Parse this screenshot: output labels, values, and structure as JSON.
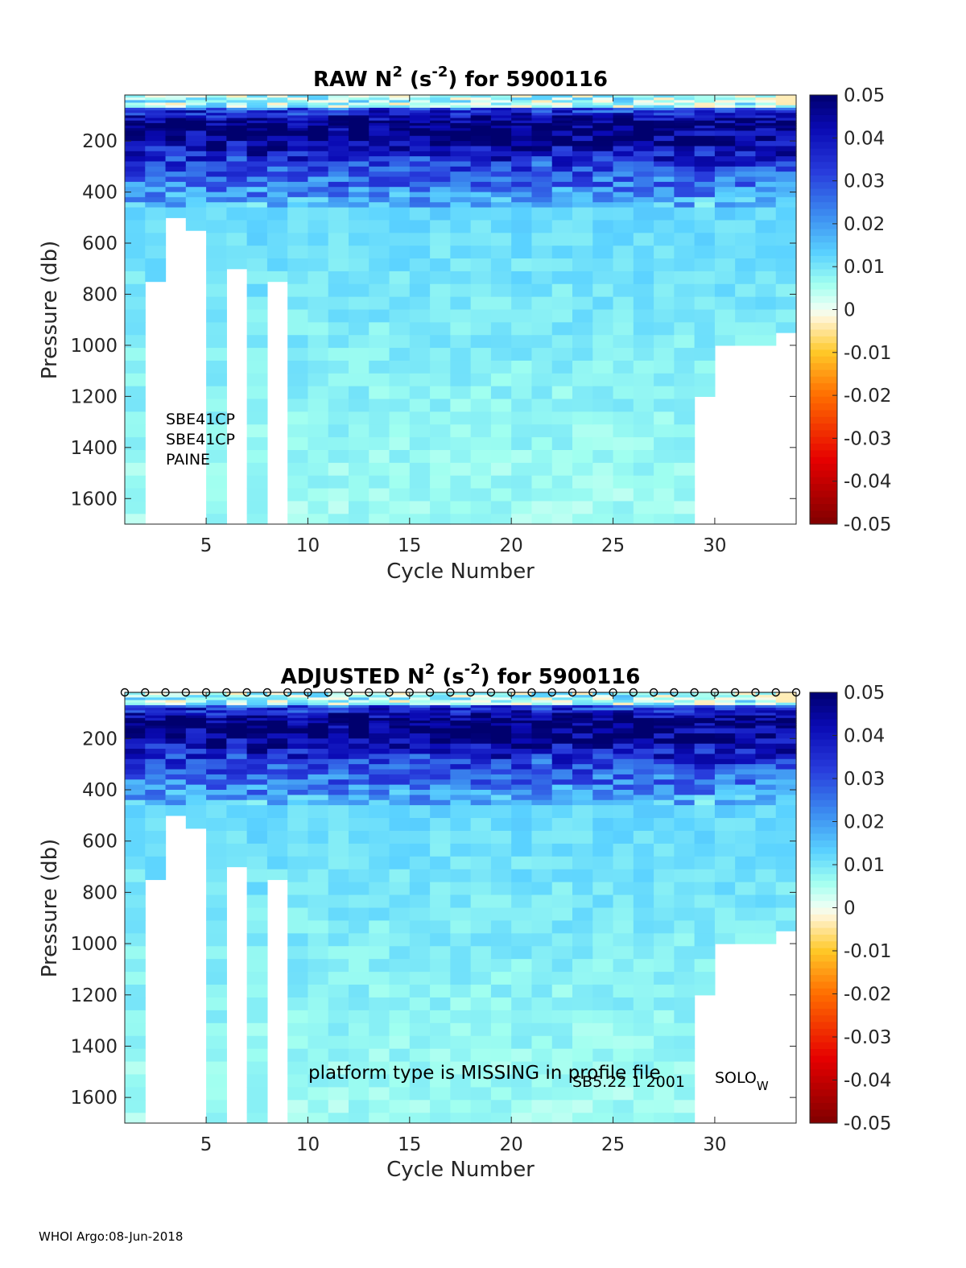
{
  "footer": "WHOI Argo:08-Jun-2018",
  "chart_data": [
    {
      "type": "heatmap",
      "title": "RAW N",
      "title_sup": "2",
      "title_unit_open": " (s",
      "title_unit_sup": "-2",
      "title_rest": ") for 5900116",
      "xlabel": "Cycle Number",
      "ylabel": "Pressure (db)",
      "xlim": [
        1,
        34
      ],
      "ylim": [
        1700,
        20
      ],
      "xticks": [
        5,
        10,
        15,
        20,
        25,
        30
      ],
      "yticks": [
        200,
        400,
        600,
        800,
        1000,
        1200,
        1400,
        1600
      ],
      "colorbar": {
        "min": -0.05,
        "max": 0.05,
        "ticks": [
          "0.05",
          "0.04",
          "0.03",
          "0.02",
          "0.01",
          "0",
          "-0.01",
          "-0.02",
          "-0.03",
          "-0.04",
          "-0.05"
        ]
      },
      "annotations": [
        "SBE41CP",
        "SBE41CP",
        "PAINE"
      ],
      "markers": false
    },
    {
      "type": "heatmap",
      "title": "ADJUSTED N",
      "title_sup": "2",
      "title_unit_open": " (s",
      "title_unit_sup": "-2",
      "title_rest": ") for 5900116",
      "xlabel": "Cycle Number",
      "ylabel": "Pressure (db)",
      "xlim": [
        1,
        34
      ],
      "ylim": [
        1700,
        20
      ],
      "xticks": [
        5,
        10,
        15,
        20,
        25,
        30
      ],
      "yticks": [
        200,
        400,
        600,
        800,
        1000,
        1200,
        1400,
        1600
      ],
      "colorbar": {
        "min": -0.05,
        "max": 0.05,
        "ticks": [
          "0.05",
          "0.04",
          "0.03",
          "0.02",
          "0.01",
          "0",
          "-0.01",
          "-0.02",
          "-0.03",
          "-0.04",
          "-0.05"
        ]
      },
      "annotations": [
        "platform type is MISSING in profile file",
        "SB5.22   1 2001",
        "SOLO",
        "W"
      ],
      "markers": true
    }
  ],
  "profile_depth_max_db": {
    "cycles": [
      1,
      2,
      3,
      4,
      5,
      6,
      7,
      8,
      9,
      10,
      11,
      12,
      13,
      14,
      15,
      16,
      17,
      18,
      19,
      20,
      21,
      22,
      23,
      24,
      25,
      26,
      27,
      28,
      29,
      30,
      31,
      32,
      33
    ],
    "max_pressure": [
      1700,
      750,
      500,
      550,
      1700,
      700,
      1700,
      750,
      1700,
      1700,
      1700,
      1700,
      1700,
      1700,
      1700,
      1700,
      1700,
      1700,
      1700,
      1700,
      1700,
      1700,
      1700,
      1700,
      1700,
      1700,
      1700,
      1700,
      1200,
      1000,
      1000,
      1000,
      950
    ]
  },
  "n2_profile_by_depth_db": {
    "depth": [
      40,
      75,
      130,
      200,
      270,
      330,
      400,
      480,
      600,
      800,
      1000,
      1200,
      1400,
      1600
    ],
    "typical_n2": [
      0.004,
      0.03,
      0.05,
      0.045,
      0.035,
      0.028,
      0.022,
      0.012,
      0.011,
      0.01,
      0.009,
      0.008,
      0.007,
      0.006
    ]
  },
  "colors": {
    "frame": "#262626",
    "no_data": "#ffffff"
  }
}
